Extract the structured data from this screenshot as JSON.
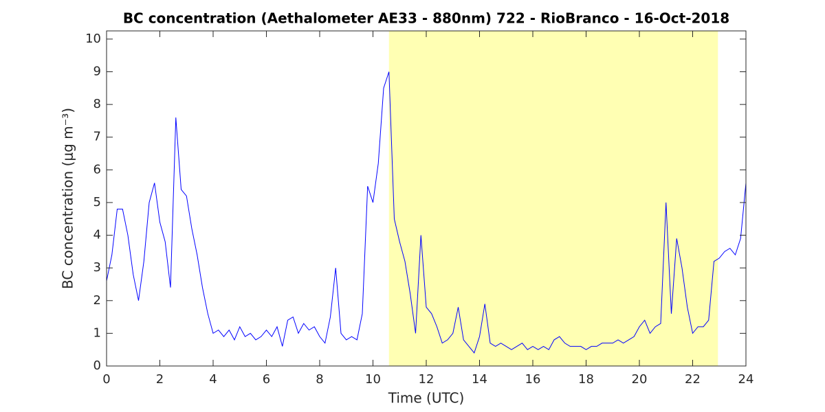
{
  "chart_data": {
    "type": "line",
    "title": "BC concentration (Aethalometer AE33 - 880nm) 722 - RioBranco - 16-Oct-2018",
    "x_label": "Time (UTC)",
    "y_label": "BC concentration (μg m⁻³)",
    "xlim": [
      0,
      24
    ],
    "ylim": [
      0,
      10.25
    ],
    "xticks": [
      0,
      2,
      4,
      6,
      8,
      10,
      12,
      14,
      16,
      18,
      20,
      22,
      24
    ],
    "yticks": [
      0,
      1,
      2,
      3,
      4,
      5,
      6,
      7,
      8,
      9,
      10
    ],
    "shaded_x": [
      10.6,
      22.95
    ],
    "shade_color": "#ffffb3",
    "series": [
      {
        "color": "#0000ff",
        "x": [
          0,
          0.2,
          0.4,
          0.6,
          0.8,
          1,
          1.2,
          1.4,
          1.6,
          1.8,
          2,
          2.2,
          2.4,
          2.6,
          2.8,
          3,
          3.2,
          3.4,
          3.6,
          3.8,
          4,
          4.2,
          4.4,
          4.6,
          4.8,
          5,
          5.2,
          5.4,
          5.6,
          5.8,
          6,
          6.2,
          6.4,
          6.6,
          6.8,
          7,
          7.2,
          7.4,
          7.6,
          7.8,
          8,
          8.2,
          8.4,
          8.6,
          8.8,
          9,
          9.2,
          9.4,
          9.6,
          9.8,
          10,
          10.2,
          10.4,
          10.6,
          10.8,
          11,
          11.2,
          11.4,
          11.6,
          11.8,
          12,
          12.2,
          12.4,
          12.6,
          12.8,
          13,
          13.2,
          13.4,
          13.6,
          13.8,
          14,
          14.2,
          14.4,
          14.6,
          14.8,
          15,
          15.2,
          15.4,
          15.6,
          15.8,
          16,
          16.2,
          16.4,
          16.6,
          16.8,
          17,
          17.2,
          17.4,
          17.6,
          17.8,
          18,
          18.2,
          18.4,
          18.6,
          18.8,
          19,
          19.2,
          19.4,
          19.6,
          19.8,
          20,
          20.2,
          20.4,
          20.6,
          20.8,
          21,
          21.2,
          21.4,
          21.6,
          21.8,
          22,
          22.2,
          22.4,
          22.6,
          22.8,
          23,
          23.2,
          23.4,
          23.6,
          23.8,
          24
        ],
        "values": [
          2.6,
          3.4,
          4.8,
          4.8,
          4.0,
          2.8,
          2.0,
          3.2,
          5.0,
          5.6,
          4.4,
          3.8,
          2.4,
          7.6,
          5.4,
          5.2,
          4.2,
          3.4,
          2.4,
          1.6,
          1.0,
          1.1,
          0.9,
          1.1,
          0.8,
          1.2,
          0.9,
          1.0,
          0.8,
          0.9,
          1.1,
          0.9,
          1.2,
          0.6,
          1.4,
          1.5,
          1.0,
          1.3,
          1.1,
          1.2,
          0.9,
          0.7,
          1.5,
          3.0,
          1.0,
          0.8,
          0.9,
          0.8,
          1.6,
          5.5,
          5.0,
          6.2,
          8.5,
          9.0,
          4.5,
          3.8,
          3.2,
          2.2,
          1.0,
          4.0,
          1.8,
          1.6,
          1.2,
          0.7,
          0.8,
          1.0,
          1.8,
          0.8,
          0.6,
          0.4,
          0.9,
          1.9,
          0.7,
          0.6,
          0.7,
          0.6,
          0.5,
          0.6,
          0.7,
          0.5,
          0.6,
          0.5,
          0.6,
          0.5,
          0.8,
          0.9,
          0.7,
          0.6,
          0.6,
          0.6,
          0.5,
          0.6,
          0.6,
          0.7,
          0.7,
          0.7,
          0.8,
          0.7,
          0.8,
          0.9,
          1.2,
          1.4,
          1.0,
          1.2,
          1.3,
          5.0,
          1.6,
          3.9,
          3.0,
          1.8,
          1.0,
          1.2,
          1.2,
          1.4,
          3.2,
          3.3,
          3.5,
          3.6,
          3.4,
          3.9,
          5.6
        ]
      }
    ]
  }
}
